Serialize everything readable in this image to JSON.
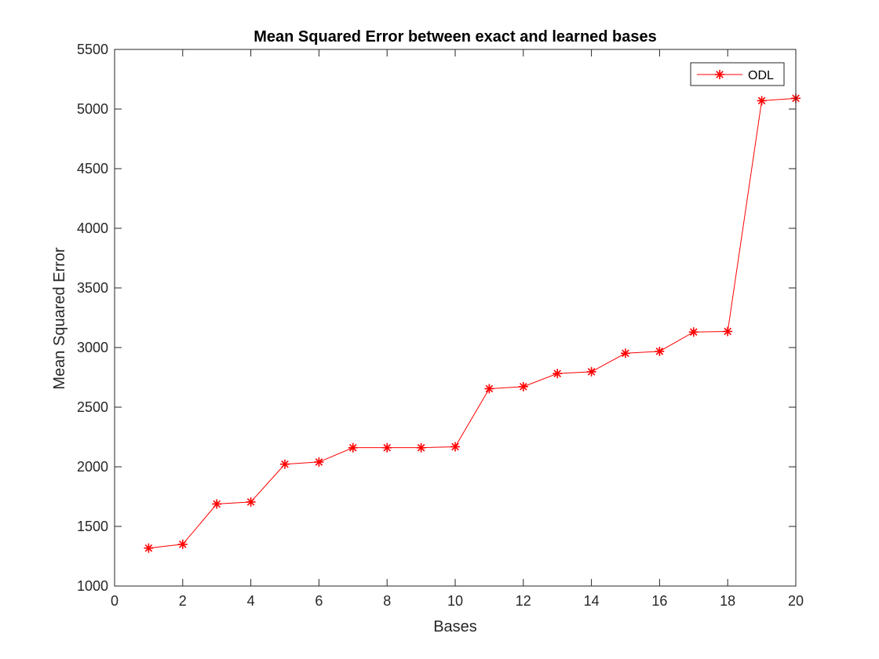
{
  "chart_data": {
    "type": "line",
    "title": "Mean Squared Error between exact and learned bases",
    "xlabel": "Bases",
    "ylabel": "Mean Squared Error",
    "xlim": [
      0,
      20
    ],
    "ylim": [
      1000,
      5500
    ],
    "xticks": [
      0,
      2,
      4,
      6,
      8,
      10,
      12,
      14,
      16,
      18,
      20
    ],
    "yticks": [
      1000,
      1500,
      2000,
      2500,
      3000,
      3500,
      4000,
      4500,
      5000,
      5500
    ],
    "grid": false,
    "legend_position": "top-right",
    "series": [
      {
        "name": "ODL",
        "color": "#ff0000",
        "marker": "asterisk",
        "x": [
          1,
          2,
          3,
          4,
          5,
          6,
          7,
          8,
          9,
          10,
          11,
          12,
          13,
          14,
          15,
          16,
          17,
          18,
          19,
          20
        ],
        "y": [
          1318,
          1350,
          1688,
          1705,
          2022,
          2040,
          2160,
          2160,
          2160,
          2168,
          2655,
          2672,
          2782,
          2797,
          2952,
          2968,
          3130,
          3135,
          5070,
          5090
        ]
      }
    ]
  }
}
